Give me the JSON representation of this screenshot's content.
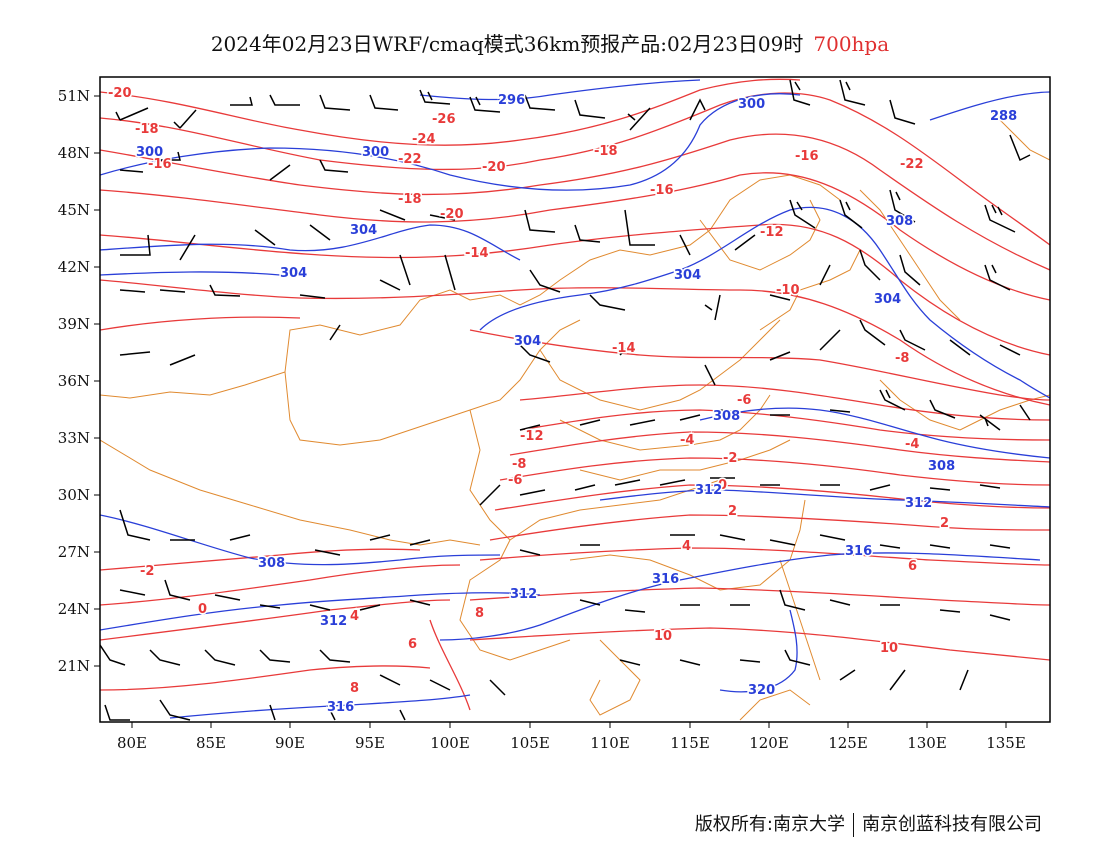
{
  "title": {
    "main": "2024年02月23日WRF/cmaq模式36km预报产品:02月23日09时",
    "level": "700hpa"
  },
  "colors": {
    "temperature": "#e83a3a",
    "height": "#2a3fd8",
    "border": "#e08a30",
    "wind": "#000000"
  },
  "axes": {
    "lat_ticks": [
      "51N",
      "48N",
      "45N",
      "42N",
      "39N",
      "36N",
      "33N",
      "30N",
      "27N",
      "24N",
      "21N"
    ],
    "lon_ticks": [
      "80E",
      "85E",
      "90E",
      "95E",
      "100E",
      "105E",
      "110E",
      "115E",
      "120E",
      "125E",
      "130E",
      "135E"
    ]
  },
  "temperature_labels": [
    "-20",
    "-18",
    "-16",
    "-26",
    "-24",
    "-22",
    "-20",
    "-18",
    "-16",
    "-14",
    "-12",
    "-10",
    "-8",
    "-6",
    "-4",
    "-2",
    "0",
    "2",
    "4",
    "6",
    "8",
    "10",
    "-16",
    "-18",
    "-22",
    "-20",
    "-14",
    "-12",
    "-8",
    "-6",
    "-4",
    "-2",
    "0",
    "2",
    "4",
    "6",
    "8",
    "10"
  ],
  "height_labels": [
    "296",
    "300",
    "300",
    "300",
    "304",
    "304",
    "304",
    "304",
    "304",
    "308",
    "308",
    "308",
    "308",
    "312",
    "312",
    "312",
    "312",
    "316",
    "316",
    "316",
    "320",
    "288"
  ],
  "credit": {
    "owner": "版权所有:南京大学",
    "partner": "南京创蓝科技有限公司"
  }
}
